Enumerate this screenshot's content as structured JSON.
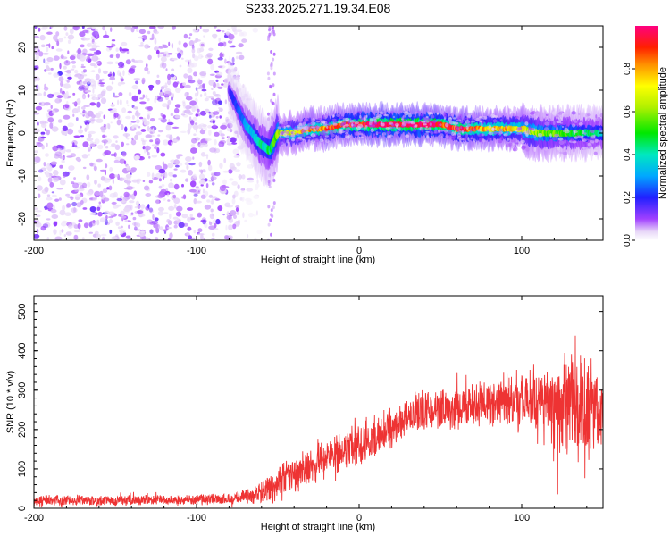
{
  "title": "S233.2025.271.19.34.E08",
  "chart_data": [
    {
      "type": "heatmap",
      "xlabel": "Height of straight line (km)",
      "ylabel": "Frequency (Hz)",
      "xlim": [
        -200,
        150
      ],
      "ylim": [
        -25,
        25
      ],
      "xticks": [
        "-200",
        "-100",
        "0",
        "100"
      ],
      "xtick_values": [
        -200,
        -100,
        0,
        100
      ],
      "yticks": [
        "-20",
        "-10",
        "0",
        "10",
        "20"
      ],
      "ytick_values": [
        -20,
        -10,
        0,
        10,
        20
      ],
      "colorbar": {
        "label": "Normalized spectral amplitude",
        "range": [
          0,
          1
        ],
        "ticks": [
          "0.0",
          "0.2",
          "0.4",
          "0.6",
          "0.8"
        ],
        "tick_values": [
          0.0,
          0.2,
          0.4,
          0.6,
          0.8
        ]
      },
      "ridge": {
        "x": [
          -80,
          -70,
          -60,
          -55,
          -50,
          -40,
          -30,
          -20,
          -10,
          0,
          10,
          20,
          30,
          40,
          50,
          60,
          70,
          80,
          90,
          100,
          110,
          120,
          130,
          140,
          150
        ],
        "freq": [
          10,
          2,
          -3,
          -4,
          0,
          0,
          1,
          1,
          2,
          2,
          2,
          2,
          2,
          2,
          2,
          1,
          1,
          1,
          1,
          1,
          0,
          0,
          0,
          0,
          0
        ],
        "peak_amplitude": [
          0.15,
          0.3,
          0.4,
          0.45,
          0.6,
          0.7,
          0.8,
          0.85,
          0.9,
          0.95,
          1.0,
          1.0,
          1.0,
          1.0,
          0.95,
          0.9,
          0.85,
          0.8,
          0.75,
          0.7,
          0.6,
          0.55,
          0.5,
          0.45,
          0.4
        ]
      },
      "noise_region_x": [
        -200,
        -60
      ]
    },
    {
      "type": "line",
      "xlabel": "Height of straight line (km)",
      "ylabel": "SNR (10 * v/v)",
      "xlim": [
        -200,
        150
      ],
      "ylim": [
        0,
        540
      ],
      "xticks": [
        "-200",
        "-100",
        "0",
        "100"
      ],
      "xtick_values": [
        -200,
        -100,
        0,
        100
      ],
      "yticks": [
        "0",
        "100",
        "200",
        "300",
        "400",
        "500"
      ],
      "ytick_values": [
        0,
        100,
        200,
        300,
        400,
        500
      ],
      "series": [
        {
          "name": "SNR",
          "color": "#ee3333",
          "trend_x": [
            -200,
            -150,
            -100,
            -80,
            -70,
            -60,
            -50,
            -40,
            -30,
            -20,
            -10,
            0,
            10,
            20,
            30,
            40,
            50,
            60,
            70,
            80,
            90,
            100,
            110,
            120,
            130,
            140,
            150
          ],
          "trend_y": [
            20,
            20,
            22,
            25,
            30,
            40,
            60,
            85,
            110,
            130,
            145,
            160,
            185,
            210,
            235,
            250,
            255,
            255,
            258,
            265,
            280,
            270,
            265,
            260,
            255,
            250,
            245
          ],
          "spread_x": [
            -200,
            -150,
            -100,
            -70,
            -60,
            -50,
            -30,
            0,
            30,
            50,
            80,
            100,
            120,
            130,
            150
          ],
          "spread_y": [
            12,
            12,
            12,
            15,
            25,
            40,
            45,
            45,
            45,
            45,
            50,
            70,
            100,
            120,
            110
          ]
        }
      ]
    }
  ]
}
